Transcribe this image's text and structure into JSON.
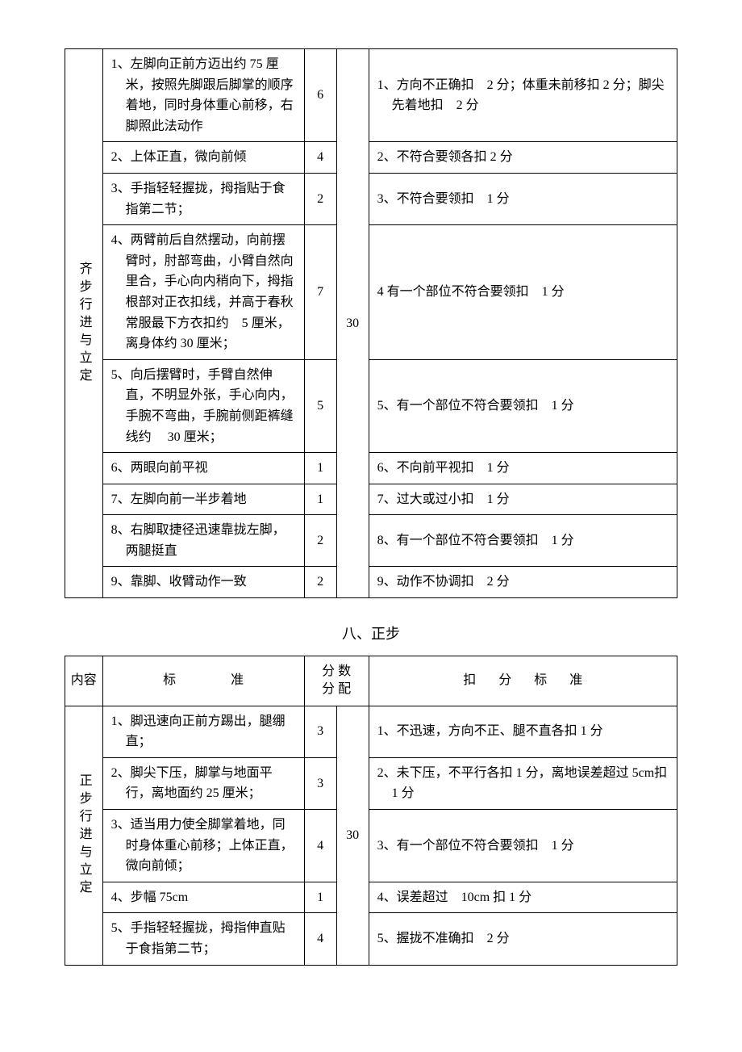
{
  "table1": {
    "category": "齐步行进与立定",
    "total_score": "30",
    "rows": [
      {
        "standard": "1、左脚向正前方迈出约 75 厘米，按照先脚跟后脚掌的顺序着地，同时身体重心前移，右脚照此法动作",
        "score": "6",
        "deduction": "1、方向不正确扣　2 分；体重未前移扣 2 分；脚尖先着地扣　2 分"
      },
      {
        "standard": "2、上体正直，微向前倾",
        "score": "4",
        "deduction": "2、不符合要领各扣 2 分"
      },
      {
        "standard": "3、手指轻轻握拢，拇指贴于食指第二节；",
        "score": "2",
        "deduction": "3、不符合要领扣　1 分"
      },
      {
        "standard": "4、两臂前后自然摆动，向前摆臂时，肘部弯曲，小臂自然向里合，手心向内稍向下，拇指根部对正衣扣线，并高于春秋常服最下方衣扣约　5 厘米，离身体约 30 厘米；",
        "score": "7",
        "deduction": "4 有一个部位不符合要领扣　1 分"
      },
      {
        "standard": "5、向后摆臂时，手臂自然伸直，不明显外张，手心向内，手腕不弯曲，手腕前侧距裤缝线约　 30 厘米；",
        "score": "5",
        "deduction": "5、有一个部位不符合要领扣　1 分"
      },
      {
        "standard": "6、两眼向前平视",
        "score": "1",
        "deduction": "6、不向前平视扣　1 分"
      },
      {
        "standard": "7、左脚向前一半步着地",
        "score": "1",
        "deduction": "7、过大或过小扣　1 分"
      },
      {
        "standard": "8、右脚取捷径迅速靠拢左脚，两腿挺直",
        "score": "2",
        "deduction": "8、有一个部位不符合要领扣　1 分"
      },
      {
        "standard": "9、靠脚、收臂动作一致",
        "score": "2",
        "deduction": "9、动作不协调扣　2 分"
      }
    ]
  },
  "section_title": "八、正步",
  "table2": {
    "headers": {
      "content": "内容",
      "standard": "标　　准",
      "score_dist_1": "分 数",
      "score_dist_2": "分 配",
      "deduction": "扣 分 标 准"
    },
    "category": "正步行进与立定",
    "total_score": "30",
    "rows": [
      {
        "standard": "1、脚迅速向正前方踢出，腿绷直；",
        "score": "3",
        "deduction": "1、不迅速，方向不正、腿不直各扣 1 分"
      },
      {
        "standard": "2、脚尖下压，脚掌与地面平行，离地面约 25 厘米；",
        "score": "3",
        "deduction": "2、未下压，不平行各扣 1 分，离地误差超过 5cm扣 1 分"
      },
      {
        "standard": "3、适当用力使全脚掌着地，同时身体重心前移；上体正直，微向前倾；",
        "score": "4",
        "deduction": "3、有一个部位不符合要领扣　1 分"
      },
      {
        "standard": "4、步幅 75cm",
        "score": "1",
        "deduction": "4、误差超过　10cm 扣 1 分"
      },
      {
        "standard": "5、手指轻轻握拢，拇指伸直贴于食指第二节；",
        "score": "4",
        "deduction": "5、握拢不准确扣　2 分"
      }
    ]
  }
}
